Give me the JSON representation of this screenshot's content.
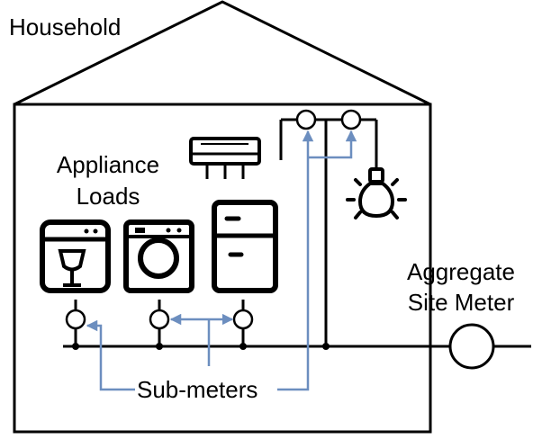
{
  "labels": {
    "household": "Household",
    "appliance_loads_line1": "Appliance",
    "appliance_loads_line2": "Loads",
    "aggregate_line1": "Aggregate",
    "aggregate_line2": "Site Meter",
    "submeters": "Sub-meters"
  },
  "icons": [
    "dishwasher-icon",
    "washing-machine-icon",
    "refrigerator-icon",
    "air-conditioner-icon",
    "light-bulb-icon"
  ],
  "colors": {
    "wire": "#000000",
    "annotation_arrow": "#6c8ebf",
    "background": "#ffffff"
  }
}
